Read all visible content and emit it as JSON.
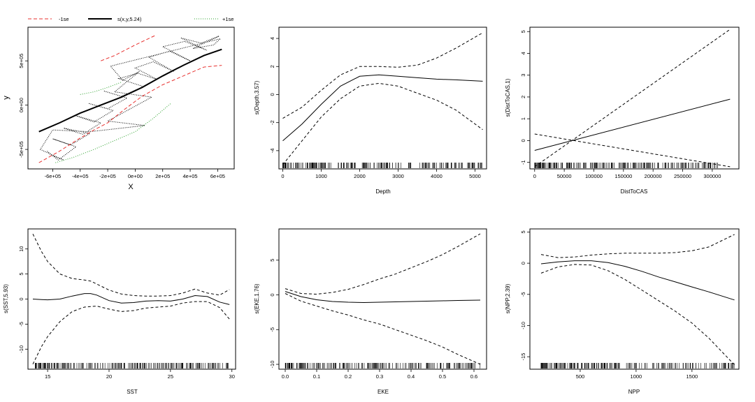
{
  "legend": {
    "minus_label": "-1se",
    "main_label": "s(x,y,5.24)",
    "plus_label": "+1se",
    "colors": {
      "minus": "#e8312f",
      "main": "#000000",
      "plus": "#2ca02c"
    }
  },
  "chart_data": [
    {
      "type": "line",
      "panel": "spatial",
      "xlabel": "X",
      "ylabel": "y",
      "xlim": [
        -780000,
        720000
      ],
      "ylim": [
        -720000,
        880000
      ],
      "xticks": [
        -600000,
        -400000,
        -200000,
        0,
        200000,
        400000,
        600000
      ],
      "xtick_labels": [
        "-6e+05",
        "-4e+05",
        "-2e+05",
        "0e+00",
        "2e+05",
        "4e+05",
        "6e+05"
      ],
      "yticks": [
        -500000,
        0,
        500000
      ],
      "ytick_labels": [
        "-5e+05",
        "0e+00",
        "5e+05"
      ],
      "series": [
        {
          "name": "s(x,y,5.24)",
          "style": "solid",
          "color": "#000000",
          "x": [
            -700000,
            -550000,
            -400000,
            -250000,
            -100000,
            50000,
            200000,
            350000,
            500000,
            630000
          ],
          "y": [
            -300000,
            -200000,
            -90000,
            0,
            90000,
            200000,
            330000,
            450000,
            560000,
            630000
          ]
        },
        {
          "name": "-1se",
          "style": "dashed",
          "color": "#e8312f",
          "x": [
            -700000,
            -550000,
            -420000,
            -300000,
            -200000,
            -80000,
            50000,
            200000,
            350000,
            500000,
            630000
          ],
          "y": [
            -650000,
            -520000,
            -390000,
            -280000,
            -200000,
            -50000,
            100000,
            230000,
            330000,
            430000,
            450000
          ]
        },
        {
          "name": "+1se",
          "style": "dotted",
          "color": "#2ca02c",
          "x": [
            -580000,
            -450000,
            -300000,
            -150000,
            0,
            130000,
            260000
          ],
          "y": [
            -650000,
            -590000,
            -500000,
            -400000,
            -300000,
            -150000,
            20000
          ]
        },
        {
          "name": "-1se upper",
          "style": "dashed",
          "color": "#e8312f",
          "x": [
            -250000,
            -150000,
            0,
            150000
          ],
          "y": [
            500000,
            560000,
            680000,
            790000
          ]
        },
        {
          "name": "+1se upper",
          "style": "dotted",
          "color": "#2ca02c",
          "x": [
            -400000,
            -300000,
            -200000,
            -100000
          ],
          "y": [
            120000,
            150000,
            200000,
            260000
          ]
        }
      ],
      "track": {
        "x": [
          -640000,
          -560000,
          -430000,
          -600000,
          -470000,
          -330000,
          -520000,
          -380000,
          -250000,
          -430000,
          -300000,
          -160000,
          -340000,
          -200000,
          -60000,
          -230000,
          -100000,
          60000,
          -120000,
          20000,
          160000,
          0,
          130000,
          280000,
          100000,
          250000,
          400000,
          200000,
          360000,
          520000,
          330000,
          480000,
          610000,
          420000,
          570000,
          620000,
          -180000,
          -90000,
          30000,
          -150000,
          120000,
          -200000,
          70000,
          -330000,
          -600000,
          -690000,
          -520000,
          -620000
        ],
        "y": [
          -520000,
          -620000,
          -470000,
          -380000,
          -450000,
          -320000,
          -260000,
          -330000,
          -200000,
          -120000,
          -190000,
          -60000,
          20000,
          -40000,
          80000,
          160000,
          100000,
          210000,
          300000,
          360000,
          290000,
          420000,
          490000,
          380000,
          540000,
          610000,
          500000,
          660000,
          720000,
          620000,
          760000,
          700000,
          780000,
          640000,
          680000,
          750000,
          440000,
          280000,
          380000,
          150000,
          90000,
          -180000,
          -230000,
          -300000,
          -280000,
          -500000,
          -620000,
          -560000
        ]
      }
    },
    {
      "type": "line",
      "panel": "depth",
      "xlabel": "Depth",
      "ylabel": "s(Depth,3.57)",
      "xlim": [
        -100,
        5300
      ],
      "ylim": [
        -5.3,
        4.8
      ],
      "xticks": [
        0,
        1000,
        2000,
        3000,
        4000,
        5000
      ],
      "yticks": [
        -4,
        -2,
        0,
        2,
        4
      ],
      "x": [
        0,
        500,
        1000,
        1500,
        2000,
        2500,
        3000,
        3500,
        4000,
        4500,
        5200
      ],
      "series": [
        {
          "name": "fit",
          "values": [
            -3.3,
            -2.1,
            -0.7,
            0.6,
            1.3,
            1.4,
            1.3,
            1.2,
            1.1,
            1.05,
            0.95
          ]
        },
        {
          "name": "upper",
          "values": [
            -1.7,
            -0.9,
            0.3,
            1.4,
            2.0,
            2.0,
            1.95,
            2.1,
            2.6,
            3.3,
            4.4
          ]
        },
        {
          "name": "lower",
          "values": [
            -5.0,
            -3.3,
            -1.6,
            -0.3,
            0.6,
            0.8,
            0.6,
            0.1,
            -0.4,
            -1.1,
            -2.5
          ]
        }
      ],
      "rug_range": [
        0,
        5200
      ]
    },
    {
      "type": "line",
      "panel": "disttocas",
      "xlabel": "DistToCAS",
      "ylabel": "s(DistToCAS,1)",
      "xlim": [
        -8000,
        345000
      ],
      "ylim": [
        -1.3,
        5.2
      ],
      "xticks": [
        0,
        50000,
        100000,
        150000,
        200000,
        250000,
        300000
      ],
      "yticks": [
        -1,
        0,
        1,
        2,
        3,
        4,
        5
      ],
      "x": [
        0,
        330000
      ],
      "series": [
        {
          "name": "fit",
          "values": [
            -0.45,
            1.9
          ]
        },
        {
          "name": "upper",
          "values": [
            -1.2,
            5.1
          ]
        },
        {
          "name": "lower",
          "values": [
            0.3,
            -1.2
          ]
        }
      ],
      "rug_range": [
        0,
        310000
      ]
    },
    {
      "type": "line",
      "panel": "sst",
      "xlabel": "SST",
      "ylabel": "s(SST,5.93)",
      "xlim": [
        13.4,
        30.3
      ],
      "ylim": [
        -14,
        14
      ],
      "xticks": [
        15,
        20,
        25,
        30
      ],
      "yticks": [
        -10,
        -5,
        0,
        5,
        10
      ],
      "x": [
        13.8,
        14.5,
        15,
        16,
        17,
        18,
        18.5,
        19,
        20,
        21,
        22,
        23,
        24,
        25,
        26,
        27,
        28,
        29,
        29.8
      ],
      "series": [
        {
          "name": "fit",
          "values": [
            0.0,
            -0.1,
            -0.15,
            0.0,
            0.6,
            1.1,
            1.1,
            0.8,
            -0.3,
            -0.8,
            -0.7,
            -0.4,
            -0.3,
            -0.4,
            0.0,
            0.7,
            0.5,
            -0.6,
            -1.1
          ]
        },
        {
          "name": "upper",
          "values": [
            13.0,
            9.5,
            7.5,
            5.0,
            4.1,
            3.8,
            3.6,
            3.0,
            1.8,
            1.0,
            0.7,
            0.6,
            0.6,
            0.7,
            1.2,
            2.0,
            1.2,
            0.8,
            1.9
          ]
        },
        {
          "name": "lower",
          "values": [
            -13.0,
            -9.5,
            -7.5,
            -4.5,
            -2.5,
            -1.6,
            -1.5,
            -1.4,
            -2.0,
            -2.5,
            -2.3,
            -1.8,
            -1.6,
            -1.4,
            -0.8,
            -0.5,
            -0.5,
            -1.7,
            -4.0
          ]
        }
      ],
      "rug_range": [
        14,
        29.8
      ]
    },
    {
      "type": "line",
      "panel": "eke",
      "xlabel": "EKE",
      "ylabel": "s(EKE,1.76)",
      "xlim": [
        -0.02,
        0.64
      ],
      "ylim": [
        -10.7,
        9.5
      ],
      "xticks": [
        0.0,
        0.1,
        0.2,
        0.3,
        0.4,
        0.5,
        0.6
      ],
      "xtick_labels": [
        "0.0",
        "0.1",
        "0.2",
        "0.3",
        "0.4",
        "0.5",
        "0.6"
      ],
      "yticks": [
        -10,
        -5,
        0,
        5
      ],
      "x": [
        0.0,
        0.05,
        0.1,
        0.15,
        0.2,
        0.25,
        0.3,
        0.35,
        0.4,
        0.45,
        0.5,
        0.55,
        0.62
      ],
      "series": [
        {
          "name": "fit",
          "values": [
            0.5,
            -0.25,
            -0.7,
            -0.95,
            -1.05,
            -1.1,
            -1.05,
            -1.0,
            -0.95,
            -0.9,
            -0.85,
            -0.8,
            -0.75
          ]
        },
        {
          "name": "upper",
          "values": [
            0.9,
            0.2,
            0.1,
            0.35,
            0.8,
            1.5,
            2.3,
            3.0,
            3.9,
            4.8,
            5.8,
            7.0,
            8.8
          ]
        },
        {
          "name": "lower",
          "values": [
            0.2,
            -0.9,
            -1.6,
            -2.3,
            -2.9,
            -3.6,
            -4.2,
            -5.0,
            -5.8,
            -6.6,
            -7.5,
            -8.6,
            -10.0
          ]
        }
      ],
      "rug_range": [
        0.0,
        0.62
      ]
    },
    {
      "type": "line",
      "panel": "npp",
      "xlabel": "NPP",
      "ylabel": "s(NPP,2.39)",
      "xlim": [
        50,
        1920
      ],
      "ylim": [
        -17,
        5.5
      ],
      "xticks": [
        500,
        1000,
        1500
      ],
      "yticks": [
        -15,
        -10,
        -5,
        0,
        5
      ],
      "x": [
        150,
        300,
        450,
        600,
        750,
        900,
        1050,
        1200,
        1350,
        1500,
        1650,
        1880
      ],
      "series": [
        {
          "name": "fit",
          "values": [
            -0.1,
            0.2,
            0.4,
            0.4,
            0.1,
            -0.5,
            -1.3,
            -2.2,
            -3.0,
            -3.8,
            -4.6,
            -5.9
          ]
        },
        {
          "name": "upper",
          "values": [
            1.4,
            0.9,
            1.0,
            1.3,
            1.5,
            1.6,
            1.6,
            1.6,
            1.7,
            2.0,
            2.6,
            4.6
          ]
        },
        {
          "name": "lower",
          "values": [
            -1.6,
            -0.6,
            -0.2,
            -0.3,
            -1.2,
            -2.6,
            -4.3,
            -6.0,
            -7.7,
            -9.6,
            -12.0,
            -16.3
          ]
        }
      ],
      "rug_range": [
        150,
        1880
      ]
    }
  ]
}
